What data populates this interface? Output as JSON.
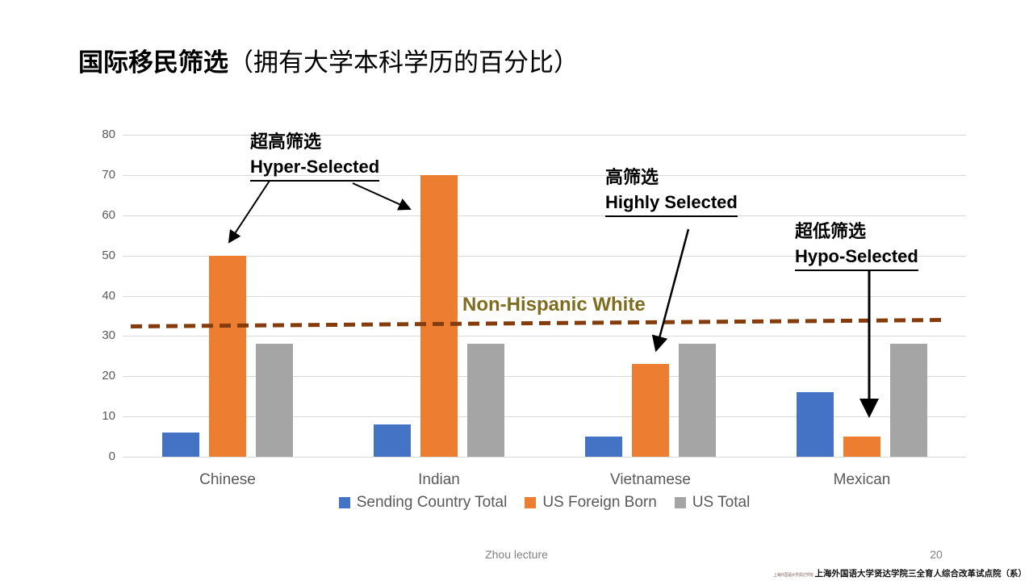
{
  "title": {
    "bold": "国际移民筛选",
    "rest": "（拥有大学本科学历的百分比）"
  },
  "chart_data": {
    "type": "bar",
    "categories": [
      "Chinese",
      "Indian",
      "Vietnamese",
      "Mexican"
    ],
    "series": [
      {
        "name": "Sending Country Total",
        "color": "#4472C4",
        "values": [
          6,
          8,
          5,
          16
        ]
      },
      {
        "name": "US Foreign Born",
        "color": "#ED7D31",
        "values": [
          50,
          70,
          23,
          5
        ]
      },
      {
        "name": "US Total",
        "color": "#A5A5A5",
        "values": [
          28,
          28,
          28,
          28
        ]
      }
    ],
    "title": "国际移民筛选（拥有大学本科学历的百分比）",
    "xlabel": "",
    "ylabel": "",
    "ylim": [
      0,
      80
    ],
    "ytick_step": 10,
    "grid": true,
    "legend_position": "bottom",
    "reference_line": {
      "value": 33,
      "label": "Non-Hispanic White",
      "line_color": "#843C0C",
      "label_color": "#7F6D1F",
      "style": "dashed"
    }
  },
  "annotations": [
    {
      "zh": "超高筛选",
      "en": "Hyper-Selected"
    },
    {
      "zh": "高筛选",
      "en": "Highly Selected"
    },
    {
      "zh": "超低筛选",
      "en": "Hypo-Selected"
    }
  ],
  "footer": {
    "lecture": "Zhou lecture",
    "page": "20",
    "watermark_logo": "上海外国语大学贤达学院",
    "watermark": "上海外国语大学贤达学院三全育人综合改革试点院（系）"
  }
}
